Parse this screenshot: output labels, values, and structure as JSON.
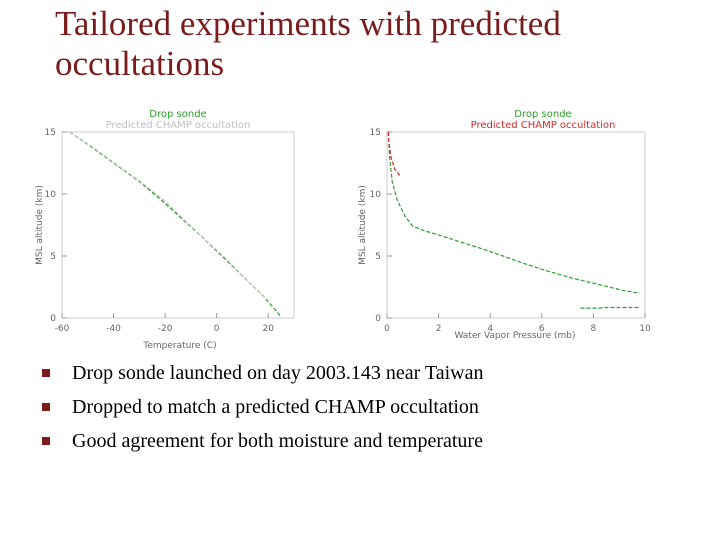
{
  "slide": {
    "title": "Tailored experiments with predicted occultations",
    "bullets": [
      "Drop sonde launched on day 2003.143 near Taiwan",
      "Dropped to match a predicted CHAMP occultation",
      "Good agreement for both moisture and temperature"
    ],
    "accent_color": "#7a1c1c",
    "bullet_icon": "square-bullet-icon"
  },
  "chart_data": [
    {
      "type": "line",
      "title": "",
      "legend": [
        "Drop sonde",
        "Predicted CHAMP occultation"
      ],
      "legend_placement": "top",
      "xlabel": "Temperature (C)",
      "ylabel": "MSL altitude (km)",
      "xlim": [
        -60,
        30
      ],
      "ylim": [
        0,
        15
      ],
      "xticks": [
        "-60",
        "-40",
        "-20",
        "0",
        "20"
      ],
      "yticks": [
        "0",
        "5",
        "10",
        "15"
      ],
      "series": [
        {
          "name": "Drop sonde",
          "color": "#2ca02c",
          "x": [
            -57,
            -50,
            -40,
            -30,
            -22,
            -14,
            -6,
            2,
            10,
            18,
            25
          ],
          "y": [
            15,
            14.0,
            12.5,
            11.0,
            9.6,
            8.1,
            6.6,
            5.0,
            3.4,
            1.8,
            0.1
          ]
        },
        {
          "name": "Predicted CHAMP occultation",
          "color": "#bfbfbf",
          "x": [
            -57,
            -49,
            -39,
            -29,
            -21,
            -13,
            -5,
            3,
            11,
            19
          ],
          "y": [
            15,
            13.9,
            12.4,
            10.9,
            9.6,
            8.0,
            6.4,
            4.9,
            3.2,
            1.6
          ]
        }
      ]
    },
    {
      "type": "line",
      "title": "",
      "legend": [
        "Drop sonde",
        "Predicted CHAMP occultation"
      ],
      "legend_placement": "top",
      "xlabel": "Water Vapor Pressure (mb)",
      "ylabel": "MSL altitude (km)",
      "xlim": [
        0,
        10
      ],
      "ylim": [
        0,
        15
      ],
      "xticks": [
        "0",
        "2",
        "4",
        "6",
        "8",
        "10"
      ],
      "yticks": [
        "0",
        "5",
        "10",
        "15"
      ],
      "series": [
        {
          "name": "Drop sonde",
          "color": "#2ca02c",
          "x": [
            0.05,
            0.1,
            0.2,
            0.4,
            0.7,
            1.0,
            1.5,
            2.0,
            2.6,
            3.2,
            3.8,
            4.5,
            5.3,
            6.2,
            7.2,
            8.2,
            9.2,
            9.8
          ],
          "y": [
            15,
            13,
            11,
            9.5,
            8.2,
            7.4,
            7.0,
            6.7,
            6.3,
            5.9,
            5.5,
            5.0,
            4.4,
            3.8,
            3.2,
            2.7,
            2.2,
            2.0
          ]
        },
        {
          "name": "Predicted CHAMP occultation",
          "color": "#d62728",
          "x": [
            0.05,
            0.08,
            0.15,
            0.3,
            0.5
          ],
          "y": [
            15,
            14,
            13,
            12,
            11.5
          ]
        },
        {
          "name": "",
          "color": "#2ca02c",
          "x": [
            7.5,
            8.2,
            8.4,
            9.8
          ],
          "y": [
            0.8,
            0.8,
            0.85,
            0.85
          ]
        }
      ]
    }
  ]
}
